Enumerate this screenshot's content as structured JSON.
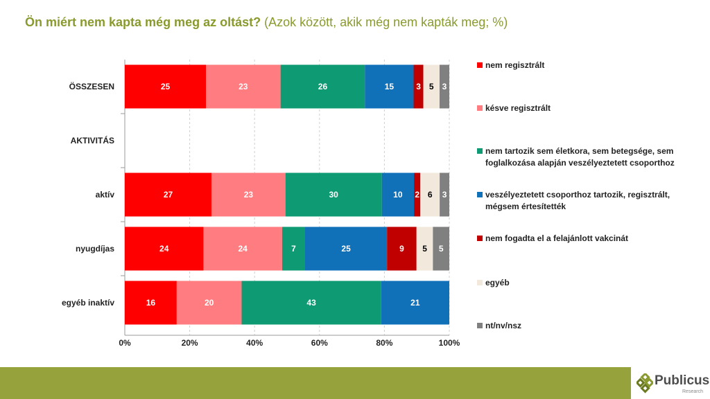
{
  "title": {
    "bold": "Ön miért nem kapta még meg az oltást?",
    "normal": " (Azok között, akik még nem kapták meg; %)"
  },
  "chart_data": {
    "type": "bar",
    "orientation": "horizontal-stacked-100",
    "title": "Ön miért nem kapta még meg az oltást? (Azok között, akik még nem kapták meg; %)",
    "categories": [
      "ÖSSZESEN",
      "AKTIVITÁS",
      "aktív",
      "nyugdíjas",
      "egyéb inaktív"
    ],
    "xlim": [
      0,
      100
    ],
    "xticks": [
      "0%",
      "20%",
      "40%",
      "60%",
      "80%",
      "100%"
    ],
    "grid": "vertical dashed",
    "legend_position": "right",
    "series": [
      {
        "name": "nem regisztrált",
        "color": "#ff0000",
        "label_color": "#ffffff",
        "values": [
          25,
          null,
          27,
          24,
          16
        ]
      },
      {
        "name": "késve regisztrált",
        "color": "#ff7c80",
        "label_color": "#ffffff",
        "values": [
          23,
          null,
          23,
          24,
          20
        ]
      },
      {
        "name": "nem tartozik sem életkora, sem betegsége, sem foglalkozása alapján veszélyeztetett csoporthoz",
        "color": "#0e9a72",
        "label_color": "#ffffff",
        "values": [
          26,
          null,
          30,
          7,
          43
        ]
      },
      {
        "name": "veszélyeztetett csoporthoz tartozik, regisztrált, mégsem értesítették",
        "color": "#1070b8",
        "label_color": "#ffffff",
        "values": [
          15,
          null,
          10,
          25,
          21
        ]
      },
      {
        "name": "nem fogadta el a felajánlott vakcinát",
        "color": "#c00000",
        "label_color": "#ffffff",
        "values": [
          3,
          null,
          2,
          9,
          null
        ]
      },
      {
        "name": "egyéb",
        "color": "#f2e8dc",
        "label_color": "#000000",
        "values": [
          5,
          null,
          6,
          5,
          null
        ]
      },
      {
        "name": "nt/nv/nsz",
        "color": "#808080",
        "label_color": "#ffffff",
        "values": [
          3,
          null,
          3,
          5,
          null
        ]
      }
    ]
  },
  "logo": {
    "name": "Publicus",
    "sub": "Research"
  },
  "colors": {
    "title": "#8a9a2e",
    "footer": "#96a23c"
  }
}
